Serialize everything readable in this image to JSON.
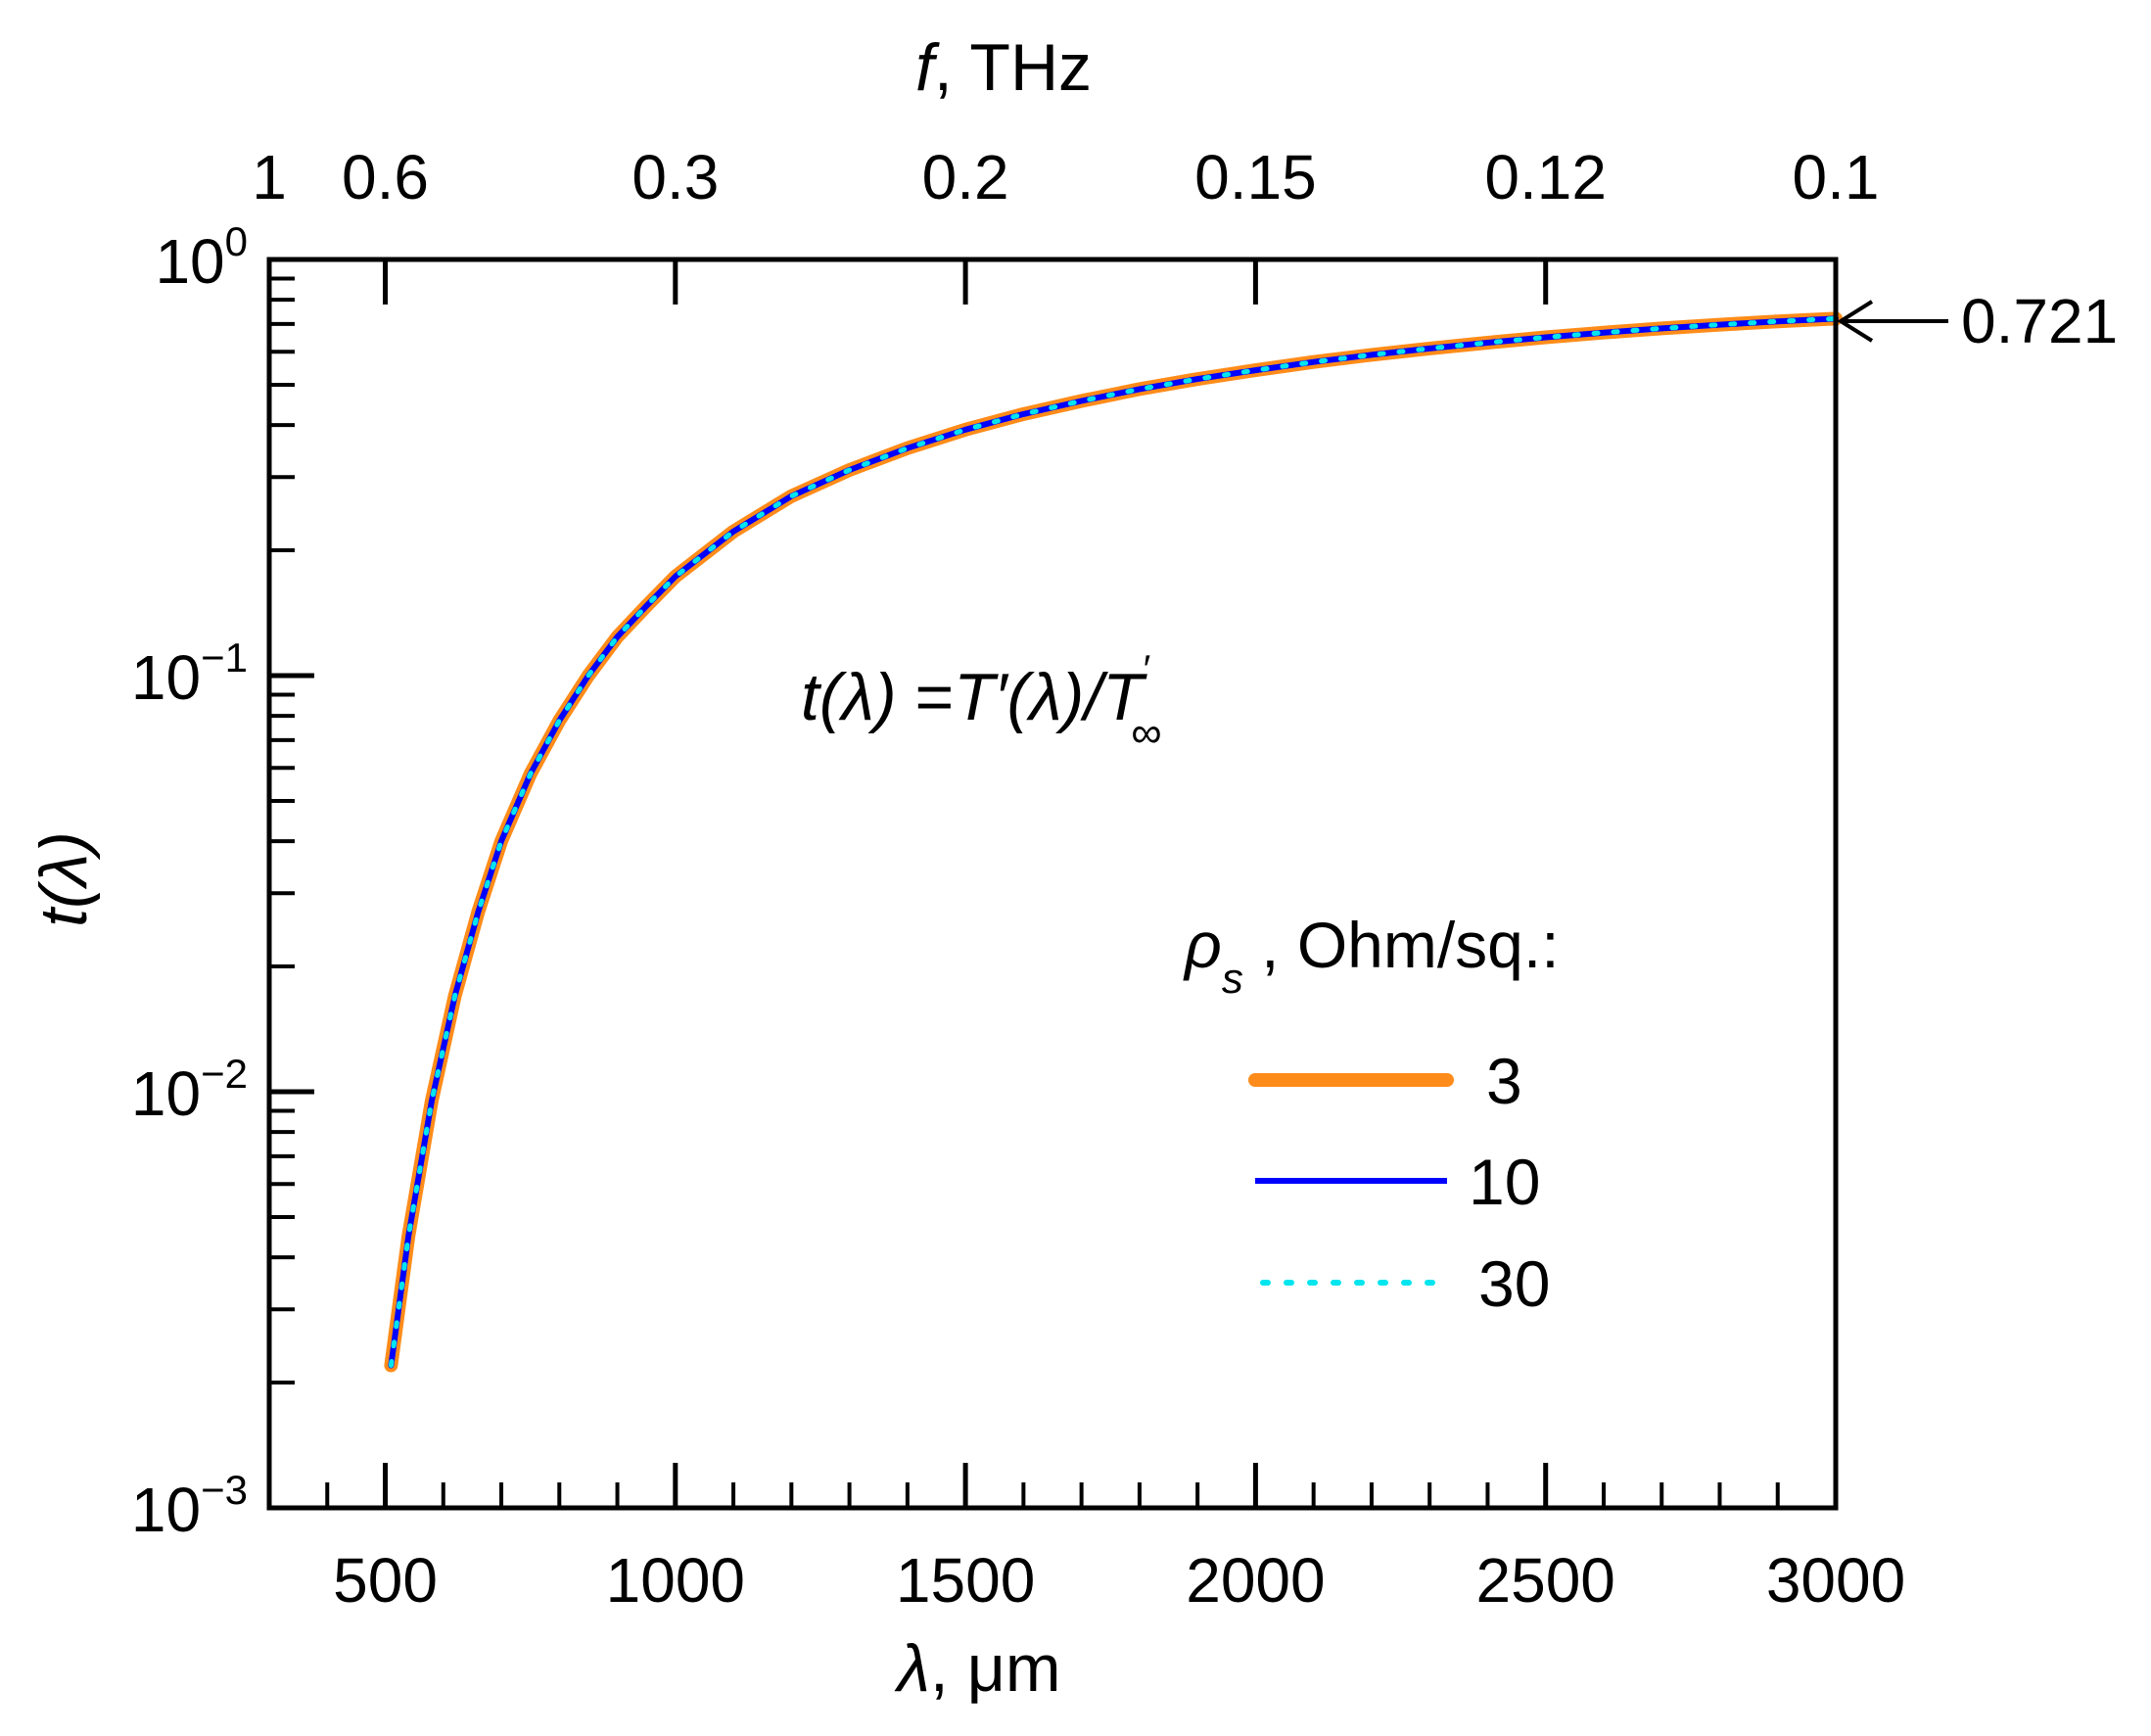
{
  "chart_data": {
    "type": "line",
    "xscale": "linear",
    "yscale": "log",
    "xlim": [
      300,
      3000
    ],
    "ylim": [
      0.001,
      1
    ],
    "xticks": [
      500,
      1000,
      1500,
      2000,
      2500,
      3000
    ],
    "xtick_labels": [
      "500",
      "1000",
      "1500",
      "2000",
      "2500",
      "3000"
    ],
    "x_minor_step": 100,
    "yticks": [
      0.001,
      0.01,
      0.1,
      1
    ],
    "ytick_labels": [
      {
        "base": "10",
        "exp": "−3"
      },
      {
        "base": "10",
        "exp": "−2"
      },
      {
        "base": "10",
        "exp": "−1"
      },
      {
        "base": "10",
        "exp": "0"
      }
    ],
    "xlabel": {
      "symbol": "λ",
      "rest": ", μm"
    },
    "ylabel": {
      "text": "t(λ)"
    },
    "top_axis": {
      "label_symbol": "f",
      "label_rest": ", THz",
      "ticks_um": [
        300,
        500,
        1000,
        1500,
        2000,
        2500,
        3000
      ],
      "labels": [
        "1",
        "0.6",
        "0.3",
        "0.2",
        "0.15",
        "0.12",
        "0.1"
      ]
    },
    "annotation_formula": {
      "lhs": "t(λ)",
      "eq": " =",
      "rhs": "T′(λ)/T",
      "sup": "′",
      "sub": "∞"
    },
    "annotation_value": "0.721",
    "legend_title": {
      "symbol": "ρ",
      "sub": "s",
      "rest": " , Ohm/sq.:"
    },
    "x": [
      510,
      540,
      580,
      620,
      660,
      700,
      750,
      800,
      850,
      900,
      950,
      1000,
      1100,
      1200,
      1300,
      1400,
      1500,
      1600,
      1700,
      1800,
      1900,
      2000,
      2100,
      2200,
      2300,
      2400,
      2500,
      2600,
      2700,
      2800,
      2900,
      3000
    ],
    "series": [
      {
        "name": "3",
        "color": "#ff8c1a",
        "style": "solid",
        "values": [
          0.0022,
          0.0045,
          0.0095,
          0.017,
          0.027,
          0.04,
          0.058,
          0.078,
          0.1,
          0.124,
          0.147,
          0.173,
          0.222,
          0.27,
          0.312,
          0.352,
          0.39,
          0.425,
          0.457,
          0.488,
          0.516,
          0.542,
          0.567,
          0.59,
          0.611,
          0.631,
          0.65,
          0.667,
          0.683,
          0.697,
          0.71,
          0.721
        ]
      },
      {
        "name": "10",
        "color": "#0000ff",
        "style": "solid",
        "values": [
          0.0022,
          0.0045,
          0.0095,
          0.017,
          0.027,
          0.04,
          0.058,
          0.078,
          0.1,
          0.124,
          0.147,
          0.173,
          0.222,
          0.27,
          0.312,
          0.352,
          0.39,
          0.425,
          0.457,
          0.488,
          0.516,
          0.542,
          0.567,
          0.59,
          0.611,
          0.631,
          0.65,
          0.667,
          0.683,
          0.697,
          0.71,
          0.721
        ]
      },
      {
        "name": "30",
        "color": "#00e5ee",
        "style": "dotted",
        "values": [
          0.0022,
          0.0045,
          0.0095,
          0.017,
          0.027,
          0.04,
          0.058,
          0.078,
          0.1,
          0.124,
          0.147,
          0.173,
          0.222,
          0.27,
          0.312,
          0.352,
          0.39,
          0.425,
          0.457,
          0.488,
          0.516,
          0.542,
          0.567,
          0.59,
          0.611,
          0.631,
          0.65,
          0.667,
          0.683,
          0.697,
          0.71,
          0.721
        ]
      }
    ]
  }
}
